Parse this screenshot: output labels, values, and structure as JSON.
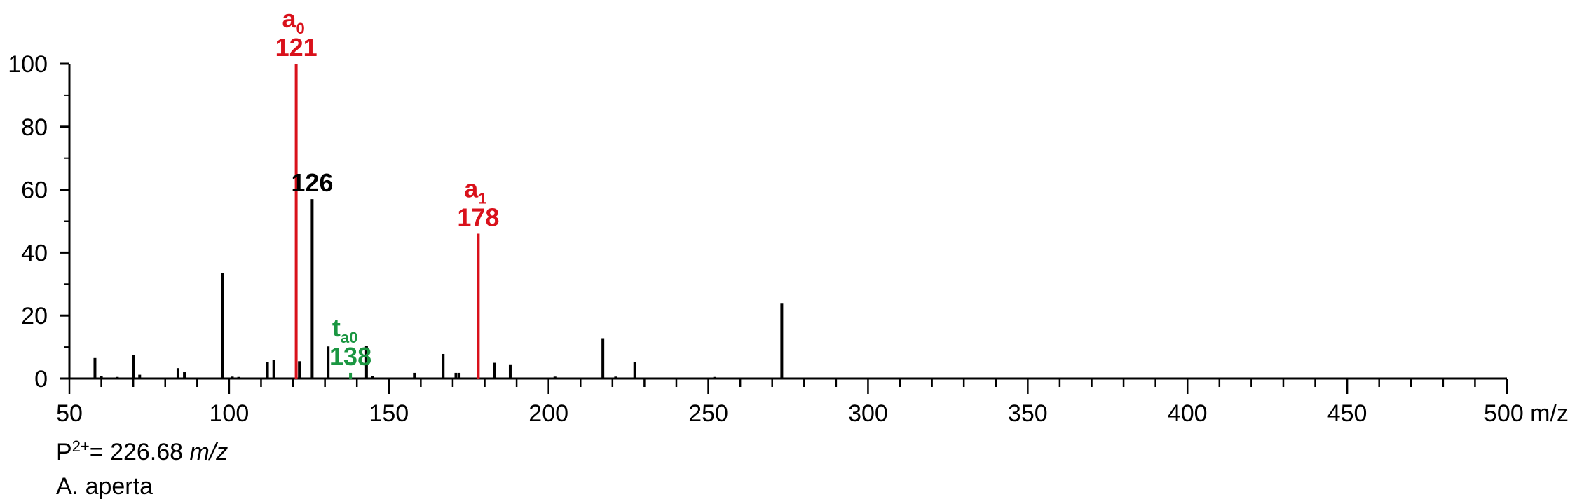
{
  "chart_data": {
    "type": "bar",
    "subtype": "mass-spectrum",
    "xlim": [
      50,
      500
    ],
    "ylim": [
      0,
      100
    ],
    "x_ticks": [
      50,
      100,
      150,
      200,
      250,
      300,
      350,
      400,
      450,
      500
    ],
    "y_ticks": [
      0,
      20,
      40,
      60,
      80,
      100
    ],
    "x_unit": "m/z",
    "peaks": [
      {
        "mz": 58,
        "intensity": 6.5
      },
      {
        "mz": 60,
        "intensity": 0.8
      },
      {
        "mz": 65,
        "intensity": 0.5
      },
      {
        "mz": 70,
        "intensity": 7.5
      },
      {
        "mz": 72,
        "intensity": 1.2
      },
      {
        "mz": 84,
        "intensity": 3.3
      },
      {
        "mz": 86,
        "intensity": 2.0
      },
      {
        "mz": 98,
        "intensity": 33.5
      },
      {
        "mz": 101,
        "intensity": 0.6
      },
      {
        "mz": 103,
        "intensity": 0.5
      },
      {
        "mz": 112,
        "intensity": 5.2
      },
      {
        "mz": 114,
        "intensity": 6.0
      },
      {
        "mz": 121,
        "intensity": 100,
        "color": "#d9111b"
      },
      {
        "mz": 122,
        "intensity": 5.5
      },
      {
        "mz": 126,
        "intensity": 57
      },
      {
        "mz": 131,
        "intensity": 10.2
      },
      {
        "mz": 138,
        "intensity": 1.8,
        "color": "#1a9641"
      },
      {
        "mz": 143,
        "intensity": 10.3
      },
      {
        "mz": 145,
        "intensity": 0.8
      },
      {
        "mz": 158,
        "intensity": 1.8
      },
      {
        "mz": 167,
        "intensity": 7.8
      },
      {
        "mz": 171,
        "intensity": 1.8
      },
      {
        "mz": 172,
        "intensity": 1.8
      },
      {
        "mz": 178,
        "intensity": 46,
        "color": "#d9111b"
      },
      {
        "mz": 183,
        "intensity": 5.0
      },
      {
        "mz": 188,
        "intensity": 4.5
      },
      {
        "mz": 202,
        "intensity": 0.6
      },
      {
        "mz": 217,
        "intensity": 12.8
      },
      {
        "mz": 221,
        "intensity": 0.6
      },
      {
        "mz": 227,
        "intensity": 5.3
      },
      {
        "mz": 252,
        "intensity": 0.5
      },
      {
        "mz": 273,
        "intensity": 24
      }
    ],
    "annotations": [
      {
        "id": "a0",
        "base": "a",
        "sub": "0",
        "value": "121",
        "mz": 121,
        "intensity": 100,
        "color": "#d9111b"
      },
      {
        "id": "p126",
        "base": "",
        "sub": "",
        "value": "126",
        "mz": 126,
        "intensity": 57,
        "color": "#000000"
      },
      {
        "id": "a1",
        "base": "a",
        "sub": "1",
        "value": "178",
        "mz": 178,
        "intensity": 46,
        "color": "#d9111b"
      },
      {
        "id": "ta0",
        "base": "t",
        "sub": "a0",
        "value": "138",
        "mz": 138,
        "intensity": 1.8,
        "color": "#1a9641"
      }
    ]
  },
  "captions": {
    "precursor_prefix": "P",
    "precursor_charge": "2+",
    "precursor_value": "= 226.68 ",
    "precursor_unit": "m/z",
    "species": "A. aperta"
  }
}
